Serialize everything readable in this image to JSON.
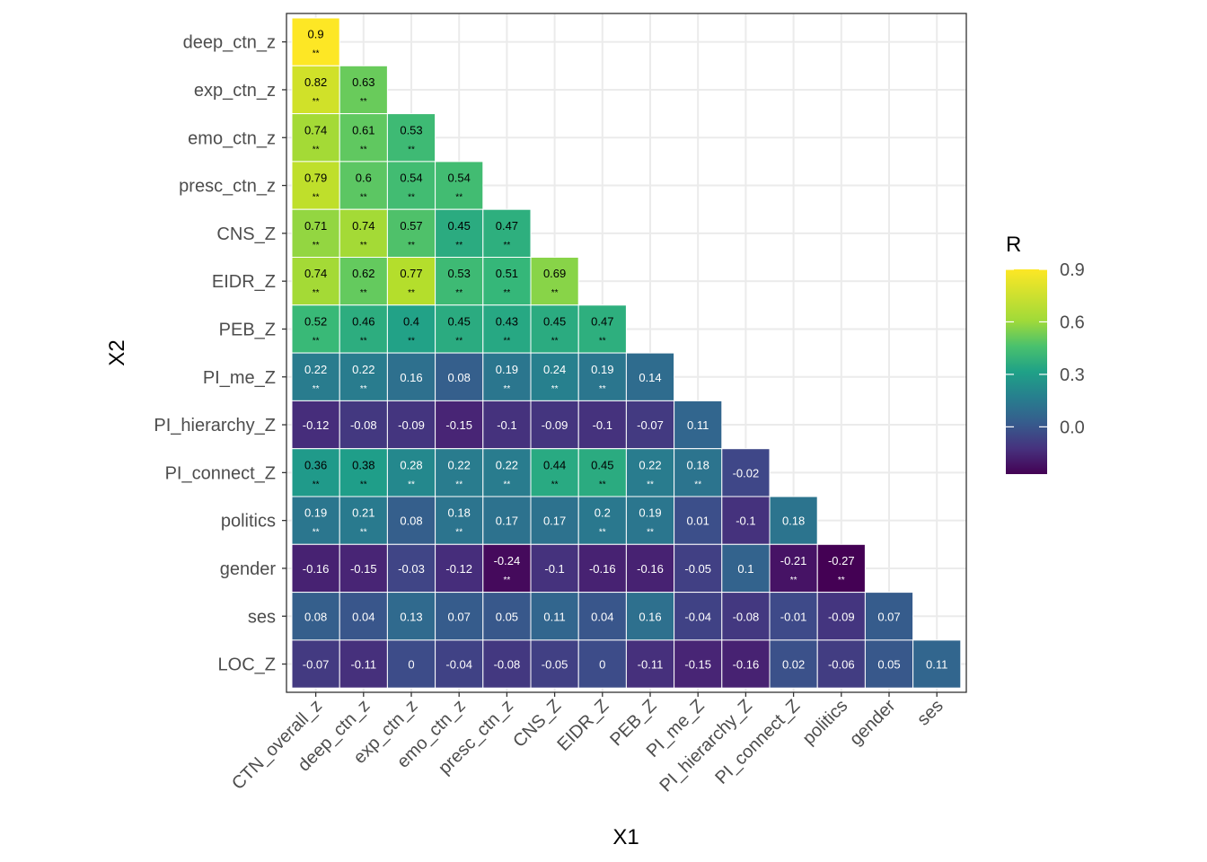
{
  "chart_data": {
    "type": "heatmap",
    "title": "",
    "xlabel": "X1",
    "ylabel": "X2",
    "x_categories": [
      "CTN_overall_z",
      "deep_ctn_z",
      "exp_ctn_z",
      "emo_ctn_z",
      "presc_ctn_z",
      "CNS_Z",
      "EIDR_Z",
      "PEB_Z",
      "PI_me_Z",
      "PI_hierarchy_Z",
      "PI_connect_Z",
      "politics",
      "gender",
      "ses"
    ],
    "y_categories": [
      "deep_ctn_z",
      "exp_ctn_z",
      "emo_ctn_z",
      "presc_ctn_z",
      "CNS_Z",
      "EIDR_Z",
      "PEB_Z",
      "PI_me_Z",
      "PI_hierarchy_Z",
      "PI_connect_Z",
      "politics",
      "gender",
      "ses",
      "LOC_Z"
    ],
    "values": [
      [
        0.9
      ],
      [
        0.82,
        0.63
      ],
      [
        0.74,
        0.61,
        0.53
      ],
      [
        0.79,
        0.6,
        0.54,
        0.54
      ],
      [
        0.71,
        0.74,
        0.57,
        0.45,
        0.47
      ],
      [
        0.74,
        0.62,
        0.77,
        0.53,
        0.51,
        0.69
      ],
      [
        0.52,
        0.46,
        0.4,
        0.45,
        0.43,
        0.45,
        0.47
      ],
      [
        0.22,
        0.22,
        0.16,
        0.08,
        0.19,
        0.24,
        0.19,
        0.14
      ],
      [
        -0.12,
        -0.08,
        -0.09,
        -0.15,
        -0.1,
        -0.09,
        -0.1,
        -0.07,
        0.11
      ],
      [
        0.36,
        0.38,
        0.28,
        0.22,
        0.22,
        0.44,
        0.45,
        0.22,
        0.18,
        -0.02
      ],
      [
        0.19,
        0.21,
        0.08,
        0.18,
        0.17,
        0.17,
        0.2,
        0.19,
        0.01,
        -0.1,
        0.18
      ],
      [
        -0.16,
        -0.15,
        -0.03,
        -0.12,
        -0.24,
        -0.1,
        -0.16,
        -0.16,
        -0.05,
        0.1,
        -0.21,
        -0.27
      ],
      [
        0.08,
        0.04,
        0.13,
        0.07,
        0.05,
        0.11,
        0.04,
        0.16,
        -0.04,
        -0.08,
        -0.01,
        -0.09,
        0.07
      ],
      [
        -0.07,
        -0.11,
        0,
        -0.04,
        -0.08,
        -0.05,
        0,
        -0.11,
        -0.15,
        -0.16,
        0.02,
        -0.06,
        0.05,
        0.11
      ]
    ],
    "significance": [
      [
        "**"
      ],
      [
        "**",
        "**"
      ],
      [
        "**",
        "**",
        "**"
      ],
      [
        "**",
        "**",
        "**",
        "**"
      ],
      [
        "**",
        "**",
        "**",
        "**",
        "**"
      ],
      [
        "**",
        "**",
        "**",
        "**",
        "**",
        "**"
      ],
      [
        "**",
        "**",
        "**",
        "**",
        "**",
        "**",
        "**"
      ],
      [
        "**",
        "**",
        "",
        "",
        "**",
        "**",
        "**",
        ""
      ],
      [
        "",
        "",
        "",
        "",
        "",
        "",
        "",
        "",
        ""
      ],
      [
        "**",
        "**",
        "**",
        "**",
        "**",
        "**",
        "**",
        "**",
        "**",
        ""
      ],
      [
        "**",
        "**",
        "",
        "**",
        "",
        "",
        "**",
        "**",
        "",
        "",
        ""
      ],
      [
        "",
        "",
        "",
        "",
        "**",
        "",
        "",
        "",
        "",
        "",
        "**",
        "**"
      ],
      [
        "",
        "",
        "",
        "",
        "",
        "",
        "",
        "",
        "",
        "",
        "",
        "",
        ""
      ],
      [
        "",
        "",
        "",
        "",
        "",
        "",
        "",
        "",
        "",
        "",
        "",
        "",
        "",
        ""
      ]
    ],
    "legend": {
      "title": "R",
      "ticks": [
        0.9,
        0.6,
        0.3,
        0.0
      ],
      "tick_labels": [
        "0.9",
        "0.6",
        "0.3",
        "0.0"
      ],
      "range": [
        -0.27,
        0.9
      ],
      "palette": "viridis",
      "placement": "right"
    },
    "grid": true
  }
}
